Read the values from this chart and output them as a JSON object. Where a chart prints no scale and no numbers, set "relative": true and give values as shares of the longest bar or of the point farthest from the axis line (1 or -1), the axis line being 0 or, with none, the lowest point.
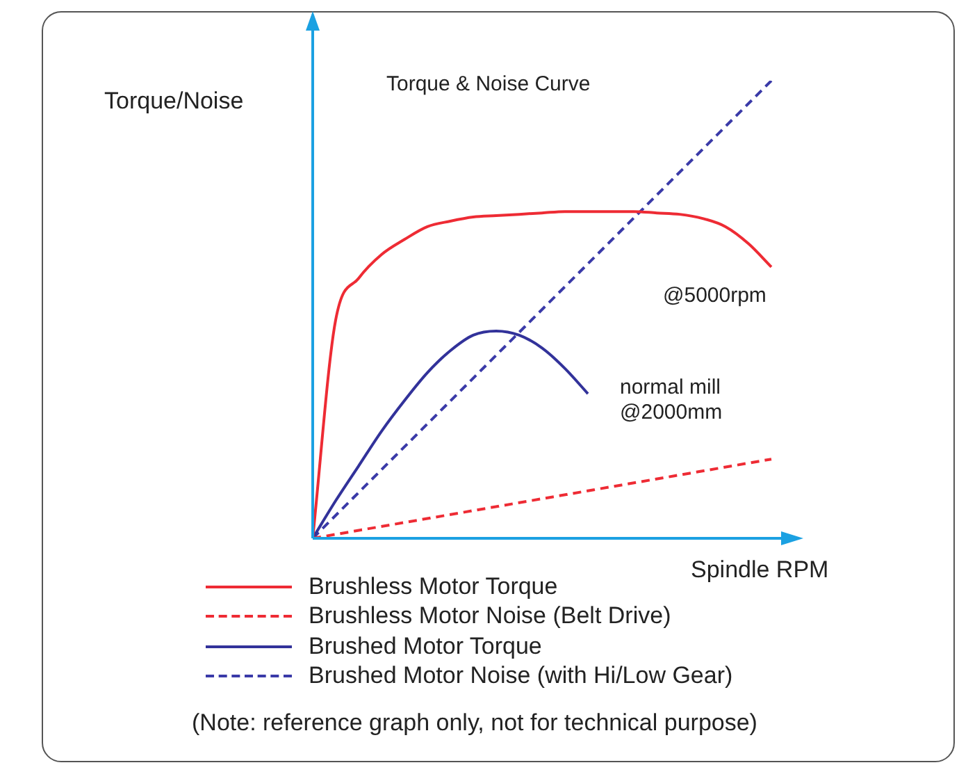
{
  "chart_data": {
    "type": "line",
    "title": "Torque & Noise Curve",
    "xlabel": "Spindle RPM",
    "ylabel": "Torque/Noise",
    "relative": true,
    "legend": "bottom",
    "grid": false,
    "marker": "none",
    "categories": [
      null,
      null,
      null,
      null,
      null,
      null,
      null,
      null,
      null,
      null,
      null,
      null,
      null,
      null,
      null,
      null,
      null,
      null,
      null,
      null,
      null
    ],
    "series": [
      {
        "name": "Brushless Motor Torque",
        "color": "#ee2b34",
        "line_style": "solid",
        "values": [
          0,
          0.477,
          0.568,
          0.62,
          0.653,
          0.681,
          0.693,
          0.702,
          0.705,
          0.708,
          0.711,
          0.714,
          0.714,
          0.714,
          0.714,
          0.711,
          0.708,
          0.699,
          0.681,
          0.644,
          0.593
        ]
      },
      {
        "name": "Brushless Motor Noise (Belt Drive)",
        "color": "#ee2b34",
        "line_style": "dashed",
        "values": [
          0,
          null,
          null,
          null,
          null,
          null,
          null,
          null,
          null,
          null,
          null,
          null,
          null,
          null,
          null,
          null,
          null,
          null,
          null,
          null,
          0.173
        ]
      },
      {
        "name": "Brushed Motor Torque",
        "color": "#32329a",
        "line_style": "solid",
        "values": [
          0,
          0.082,
          0.158,
          0.234,
          0.301,
          0.362,
          0.41,
          0.444,
          0.453,
          0.444,
          0.416,
          0.371,
          0.316,
          null,
          null,
          null,
          null,
          null,
          null,
          null,
          null
        ]
      },
      {
        "name": "Brushed Motor Noise (with Hi/Low Gear)",
        "color": "#3a3aa8",
        "line_style": "dashed",
        "values": [
          0,
          null,
          null,
          null,
          null,
          null,
          null,
          null,
          null,
          null,
          null,
          null,
          null,
          null,
          null,
          null,
          null,
          null,
          null,
          null,
          1
        ]
      }
    ],
    "annotations": [
      "@5000rpm",
      "normal mill\n@2000mm",
      "(Note: reference graph only, not for technical purpose)"
    ]
  }
}
